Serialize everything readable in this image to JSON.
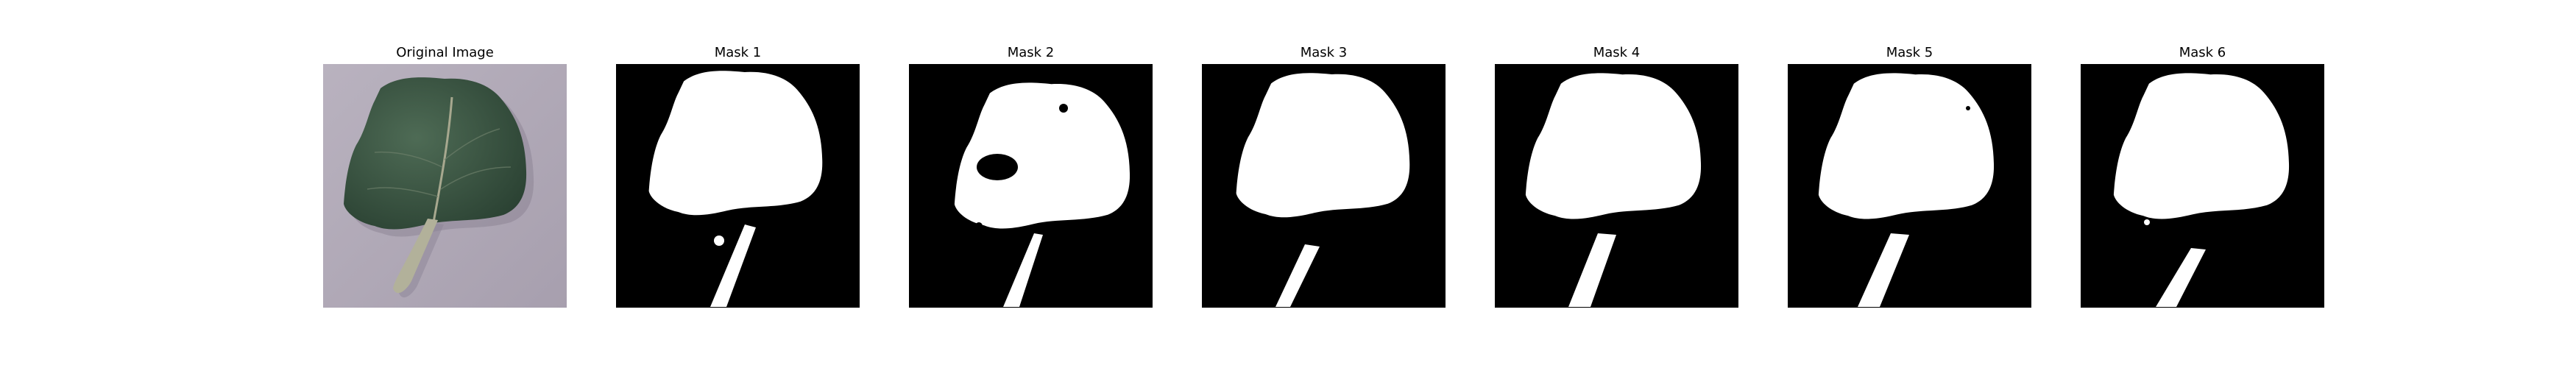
{
  "figure": {
    "panels": [
      {
        "title": "Original Image",
        "kind": "photo",
        "subject": "leaf"
      },
      {
        "title": "Mask 1",
        "kind": "mask"
      },
      {
        "title": "Mask 2",
        "kind": "mask"
      },
      {
        "title": "Mask 3",
        "kind": "mask"
      },
      {
        "title": "Mask 4",
        "kind": "mask"
      },
      {
        "title": "Mask 5",
        "kind": "mask"
      },
      {
        "title": "Mask 6",
        "kind": "mask"
      }
    ]
  }
}
